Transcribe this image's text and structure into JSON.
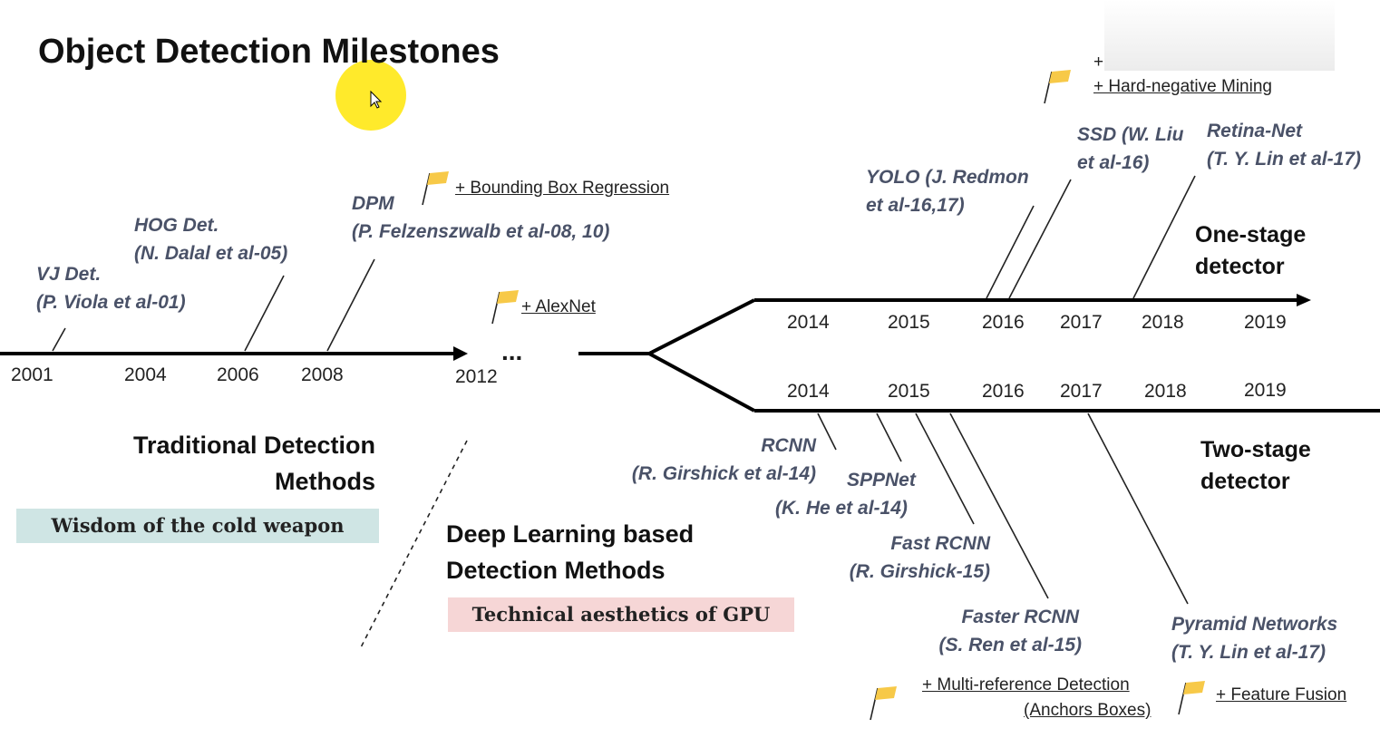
{
  "title": "Object Detection Milestones",
  "timeline_years": {
    "main": [
      "2001",
      "2004",
      "2006",
      "2008",
      "2012"
    ],
    "one_stage": [
      "2014",
      "2015",
      "2016",
      "2017",
      "2018",
      "2019"
    ],
    "two_stage": [
      "2014",
      "2015",
      "2016",
      "2017",
      "2018",
      "2019"
    ]
  },
  "ellipsis": "...",
  "traditional_detectors": [
    {
      "name": "VJ Det.",
      "author": "(P. Viola et al-01)"
    },
    {
      "name": "HOG Det.",
      "author": "(N. Dalal et al-05)"
    },
    {
      "name": "DPM",
      "author": "(P. Felzenszwalb et al-08, 10)"
    }
  ],
  "one_stage_detectors": [
    {
      "name": "YOLO (J. Redmon",
      "author": "et al-16,17)"
    },
    {
      "name": "SSD (W. Liu",
      "author": "et al-16)"
    },
    {
      "name": "Retina-Net",
      "author": "(T. Y. Lin et al-17)"
    }
  ],
  "two_stage_detectors": [
    {
      "name": "RCNN",
      "author": "(R. Girshick et al-14)"
    },
    {
      "name": "SPPNet",
      "author": "(K. He et al-14)"
    },
    {
      "name": "Fast RCNN",
      "author": "(R. Girshick-15)"
    },
    {
      "name": "Faster RCNN",
      "author": "(S. Ren et al-15)"
    },
    {
      "name": "Pyramid Networks",
      "author": "(T. Y. Lin et al-17)"
    }
  ],
  "flag_notes": {
    "bbox_regression": "+ Bounding Box Regression",
    "alexnet": "+ AlexNet",
    "hard_negative_top": "+",
    "hard_negative": "+ Hard-negative Mining",
    "multi_reference": "+ Multi-reference Detection",
    "anchors": "(Anchors Boxes)",
    "feature_fusion": "+ Feature Fusion"
  },
  "branch_labels": {
    "one_stage_line1": "One-stage",
    "one_stage_line2": "detector",
    "two_stage_line1": "Two-stage",
    "two_stage_line2": "detector"
  },
  "sections": {
    "traditional_line1": "Traditional Detection",
    "traditional_line2": "Methods",
    "traditional_badge": "Wisdom of the cold weapon",
    "deep_line1": "Deep Learning based",
    "deep_line2": "Detection Methods",
    "deep_badge": "Technical aesthetics of GPU"
  },
  "colors": {
    "detector_text": "#4a5268",
    "flag": "#f7c948",
    "badge_cold": "#cfe5e4",
    "badge_gpu": "#f6d6d6",
    "cursor_highlight": "#ffe814"
  }
}
